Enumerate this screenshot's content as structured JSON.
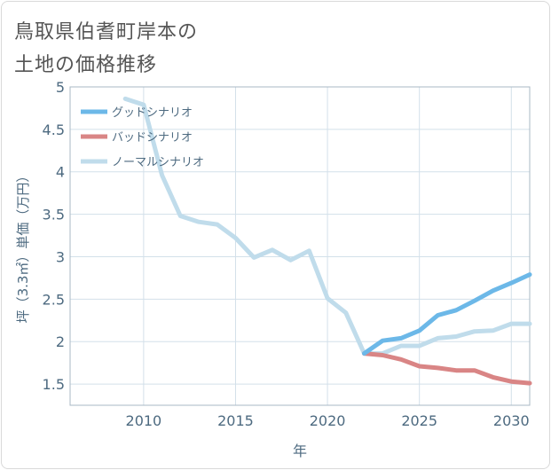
{
  "title": {
    "line1": "鳥取県伯耆町岸本の",
    "line2": "土地の価格推移"
  },
  "chart_data": {
    "type": "line",
    "xlabel": "年",
    "ylabel": "坪（3.3㎡）単価（万円）",
    "xlim": [
      2006,
      2031
    ],
    "ylim": [
      1.25,
      5
    ],
    "x_ticks": [
      2010,
      2015,
      2020,
      2025,
      2030
    ],
    "y_ticks": [
      1.5,
      2,
      2.5,
      3,
      3.5,
      4,
      4.5,
      5
    ],
    "grid": true,
    "legend_position": "top-left",
    "series": [
      {
        "name": "グッドシナリオ",
        "color": "#6cb8e8",
        "x": [
          2022,
          2023,
          2024,
          2025,
          2026,
          2027,
          2028,
          2029,
          2030,
          2031
        ],
        "y": [
          1.86,
          2.01,
          2.04,
          2.13,
          2.31,
          2.37,
          2.48,
          2.6,
          2.69,
          2.79
        ]
      },
      {
        "name": "バッドシナリオ",
        "color": "#d98585",
        "x": [
          2022,
          2023,
          2024,
          2025,
          2026,
          2027,
          2028,
          2029,
          2030,
          2031
        ],
        "y": [
          1.86,
          1.84,
          1.79,
          1.71,
          1.69,
          1.66,
          1.66,
          1.58,
          1.53,
          1.51
        ]
      },
      {
        "name": "ノーマルシナリオ",
        "color": "#c0dceb",
        "x": [
          2009,
          2010,
          2011,
          2012,
          2013,
          2014,
          2015,
          2016,
          2017,
          2018,
          2019,
          2020,
          2021,
          2022,
          2023,
          2024,
          2025,
          2026,
          2027,
          2028,
          2029,
          2030,
          2031
        ],
        "y": [
          4.86,
          4.79,
          3.96,
          3.48,
          3.41,
          3.38,
          3.22,
          2.99,
          3.08,
          2.96,
          3.07,
          2.51,
          2.34,
          1.86,
          1.86,
          1.95,
          1.95,
          2.04,
          2.06,
          2.12,
          2.13,
          2.21,
          2.21
        ]
      }
    ]
  }
}
